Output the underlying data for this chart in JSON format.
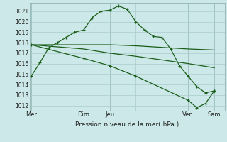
{
  "xlabel": "Pression niveau de la mer( hPa )",
  "bg_color": "#cce8e8",
  "grid_color": "#aacccc",
  "line_color": "#1a5e1a",
  "ylim": [
    1011.5,
    1021.8
  ],
  "yticks": [
    1012,
    1013,
    1014,
    1015,
    1016,
    1017,
    1018,
    1019,
    1020,
    1021
  ],
  "xlim": [
    -0.2,
    22.2
  ],
  "xtick_positions": [
    0,
    6,
    9,
    12,
    18,
    21
  ],
  "xtick_labels": [
    "Mer",
    "Dim",
    "Jeu",
    "",
    "Ven",
    "Sam"
  ],
  "vlines_x": [
    0,
    6,
    9,
    18,
    21
  ],
  "line1_x": [
    0,
    1,
    2,
    3,
    4,
    5,
    6,
    7,
    8,
    9,
    10,
    11,
    12,
    13,
    14,
    15,
    16,
    17,
    18,
    19,
    20,
    21
  ],
  "line1_y": [
    1014.8,
    1016.1,
    1017.5,
    1018.0,
    1018.5,
    1019.0,
    1019.2,
    1020.4,
    1021.0,
    1021.1,
    1021.5,
    1021.2,
    1020.0,
    1019.2,
    1018.6,
    1018.5,
    1017.4,
    1015.8,
    1014.8,
    1013.8,
    1013.2,
    1013.4
  ],
  "line2_x": [
    0,
    6,
    9,
    12,
    18,
    21
  ],
  "line2_y": [
    1017.8,
    1017.8,
    1017.8,
    1017.7,
    1017.4,
    1017.3
  ],
  "line3_x": [
    0,
    6,
    9,
    12,
    18,
    21
  ],
  "line3_y": [
    1017.8,
    1017.4,
    1017.0,
    1016.7,
    1016.0,
    1015.6
  ],
  "line4_x": [
    0,
    6,
    9,
    12,
    18,
    19,
    20,
    21
  ],
  "line4_y": [
    1017.8,
    1016.5,
    1015.8,
    1014.8,
    1012.5,
    1011.8,
    1012.2,
    1013.4
  ],
  "marker_size": 3.0,
  "lw": 0.9
}
